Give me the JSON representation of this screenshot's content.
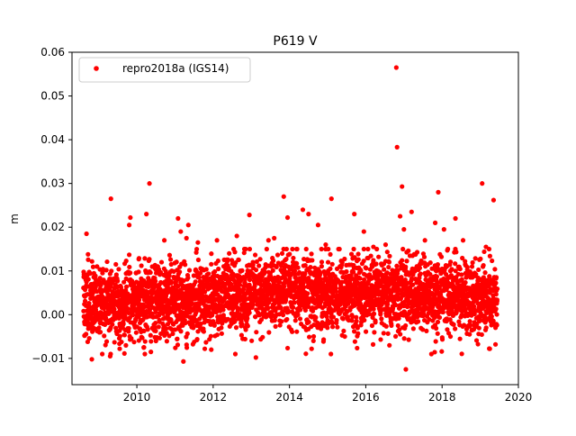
{
  "chart_data": {
    "type": "scatter",
    "title": "P619 V",
    "xlabel": "",
    "ylabel": "m",
    "xlim": [
      2008.3,
      2020.0
    ],
    "ylim": [
      -0.016,
      0.06
    ],
    "x_ticks": [
      "2010",
      "2012",
      "2014",
      "2016",
      "2018",
      "2020"
    ],
    "y_ticks": [
      "−0.01",
      "0.00",
      "0.01",
      "0.02",
      "0.03",
      "0.04",
      "0.05",
      "0.06"
    ],
    "grid": false,
    "legend": {
      "position": "top-left",
      "entries": [
        "repro2018a (IGS14)"
      ]
    },
    "series": [
      {
        "name": "repro2018a (IGS14)",
        "color": "#ff0000",
        "marker": "circle",
        "time_range": [
          2008.6,
          2019.45
        ],
        "typical_band": [
          -0.005,
          0.012
        ],
        "points": [
          [
            2008.68,
            0.0185
          ],
          [
            2008.72,
            0.0138
          ],
          [
            2008.82,
            -0.0102
          ],
          [
            2009.1,
            0.0095
          ],
          [
            2009.22,
            0.0121
          ],
          [
            2009.3,
            -0.0095
          ],
          [
            2009.32,
            0.0265
          ],
          [
            2009.45,
            0.0115
          ],
          [
            2009.55,
            -0.0078
          ],
          [
            2009.72,
            0.0123
          ],
          [
            2009.8,
            0.0205
          ],
          [
            2009.83,
            0.0222
          ],
          [
            2009.98,
            0.0095
          ],
          [
            2010.05,
            0.0127
          ],
          [
            2010.18,
            -0.0075
          ],
          [
            2010.25,
            0.023
          ],
          [
            2010.33,
            0.03
          ],
          [
            2010.55,
            0.011
          ],
          [
            2010.72,
            0.017
          ],
          [
            2010.9,
            0.0115
          ],
          [
            2011.03,
            0.012
          ],
          [
            2011.08,
            0.022
          ],
          [
            2011.15,
            0.019
          ],
          [
            2011.22,
            -0.0107
          ],
          [
            2011.3,
            0.0175
          ],
          [
            2011.35,
            0.0205
          ],
          [
            2011.48,
            -0.003
          ],
          [
            2011.6,
            0.0165
          ],
          [
            2011.78,
            -0.0078
          ],
          [
            2011.95,
            -0.008
          ],
          [
            2012.1,
            0.017
          ],
          [
            2012.42,
            0.014
          ],
          [
            2012.62,
            0.018
          ],
          [
            2012.85,
            0.015
          ],
          [
            2012.95,
            0.0228
          ],
          [
            2013.12,
            -0.0098
          ],
          [
            2013.45,
            0.017
          ],
          [
            2013.6,
            0.0175
          ],
          [
            2013.85,
            0.027
          ],
          [
            2013.95,
            0.0222
          ],
          [
            2014.2,
            0.015
          ],
          [
            2014.35,
            0.024
          ],
          [
            2014.5,
            0.023
          ],
          [
            2014.58,
            -0.0078
          ],
          [
            2014.75,
            0.0205
          ],
          [
            2014.95,
            0.016
          ],
          [
            2015.1,
            0.0265
          ],
          [
            2015.45,
            -0.005
          ],
          [
            2015.7,
            0.023
          ],
          [
            2015.95,
            0.019
          ],
          [
            2016.2,
            0.0155
          ],
          [
            2016.52,
            0.016
          ],
          [
            2016.62,
            -0.007
          ],
          [
            2016.8,
            0.0565
          ],
          [
            2016.82,
            0.0383
          ],
          [
            2016.9,
            0.0225
          ],
          [
            2016.95,
            0.0293
          ],
          [
            2017.0,
            0.0195
          ],
          [
            2017.05,
            -0.0125
          ],
          [
            2017.2,
            0.0235
          ],
          [
            2017.55,
            0.017
          ],
          [
            2017.72,
            -0.009
          ],
          [
            2017.82,
            0.021
          ],
          [
            2017.9,
            0.028
          ],
          [
            2018.05,
            0.0195
          ],
          [
            2018.22,
            -0.005
          ],
          [
            2018.35,
            0.022
          ],
          [
            2018.55,
            0.017
          ],
          [
            2018.72,
            -0.0045
          ],
          [
            2019.05,
            0.03
          ],
          [
            2019.15,
            0.0155
          ],
          [
            2019.25,
            -0.0078
          ],
          [
            2019.35,
            0.0262
          ],
          [
            2019.4,
            -0.0068
          ]
        ]
      }
    ]
  }
}
